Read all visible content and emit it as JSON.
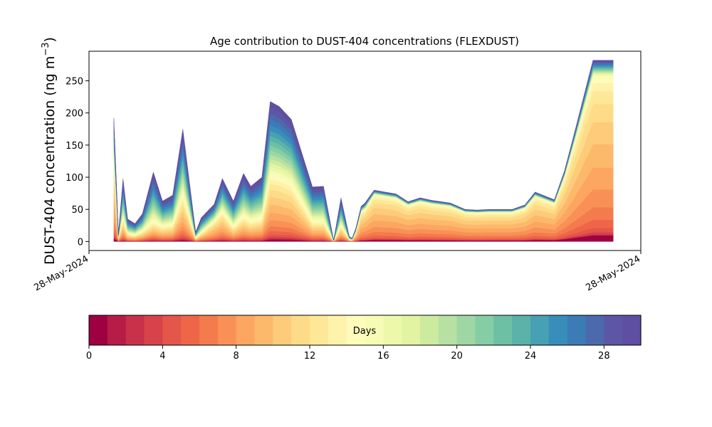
{
  "chart_data": {
    "type": "area",
    "stacked": true,
    "title": "Age contribution to DUST-404 concentrations (FLEXDUST)",
    "ylabel_main": "DUST-404 concentration (ng m",
    "ylabel_unit_sup": "−3",
    "ylabel_close": ")",
    "ylim": [
      -14,
      296
    ],
    "yticks": [
      0,
      50,
      100,
      150,
      200,
      250
    ],
    "xlim": [
      0,
      60
    ],
    "xticks": [
      {
        "x": 0,
        "label": "28-May-2024"
      },
      {
        "x": 60,
        "label": "28-May-2024"
      }
    ],
    "x": [
      2.7,
      3.2,
      3.7,
      4.2,
      5.0,
      5.8,
      7.0,
      8.0,
      9.1,
      10.2,
      11.6,
      12.2,
      13.6,
      14.5,
      15.7,
      16.8,
      17.6,
      18.8,
      19.7,
      20.7,
      22.0,
      24.3,
      25.5,
      26.6,
      27.4,
      28.3,
      28.6,
      29.0,
      29.6,
      30.0,
      31.0,
      33.4,
      34.7,
      36.0,
      37.3,
      39.3,
      40.9,
      42.2,
      43.5,
      44.8,
      46.0,
      47.4,
      48.5,
      50.6,
      51.7,
      52.8,
      54.8,
      57.0
    ],
    "total": [
      192,
      12,
      98,
      35,
      28,
      43,
      108,
      63,
      72,
      175,
      15,
      37,
      58,
      98,
      63,
      106,
      86,
      100,
      218,
      210,
      190,
      85,
      86,
      2,
      68,
      8,
      5,
      20,
      55,
      60,
      80,
      74,
      62,
      68,
      64,
      60,
      50,
      49,
      50,
      50,
      50,
      57,
      77,
      65,
      110,
      170,
      282,
      282
    ],
    "fresh_fraction": [
      0.75,
      0.5,
      0.3,
      0.25,
      0.3,
      0.3,
      0.1,
      0.3,
      0.3,
      0.4,
      0.3,
      0.3,
      0.6,
      0.5,
      0.3,
      0.3,
      0.3,
      0.3,
      0.5,
      0.5,
      0.5,
      0.3,
      0.3,
      0.5,
      0.3,
      0.5,
      0.5,
      0.8,
      0.9,
      0.9,
      0.95,
      0.95,
      0.95,
      0.95,
      0.95,
      0.95,
      0.95,
      0.95,
      0.95,
      0.95,
      0.95,
      0.95,
      0.95,
      0.95,
      0.95,
      0.95,
      0.95,
      0.95
    ],
    "colorbar": {
      "label": "Days",
      "min": 0,
      "max": 30,
      "bins": 30,
      "ticks": [
        0,
        4,
        8,
        12,
        16,
        20,
        24,
        28
      ],
      "colors": [
        "#9e0142",
        "#b61c46",
        "#c9314a",
        "#d8424a",
        "#e4554a",
        "#ee6647",
        "#f47b4d",
        "#f99157",
        "#fca661",
        "#fdb96b",
        "#fdcb79",
        "#fedb88",
        "#fee898",
        "#fff2aa",
        "#fefbbb",
        "#f7fcb5",
        "#eef8ab",
        "#e2f3a2",
        "#cdeb9e",
        "#b6e1a2",
        "#9ed6a4",
        "#84cda5",
        "#6ec0a5",
        "#5ab2a9",
        "#47a0b3",
        "#388eba",
        "#3b7cb7",
        "#4b6aae",
        "#5c56a5",
        "#5e4fa2"
      ]
    }
  }
}
